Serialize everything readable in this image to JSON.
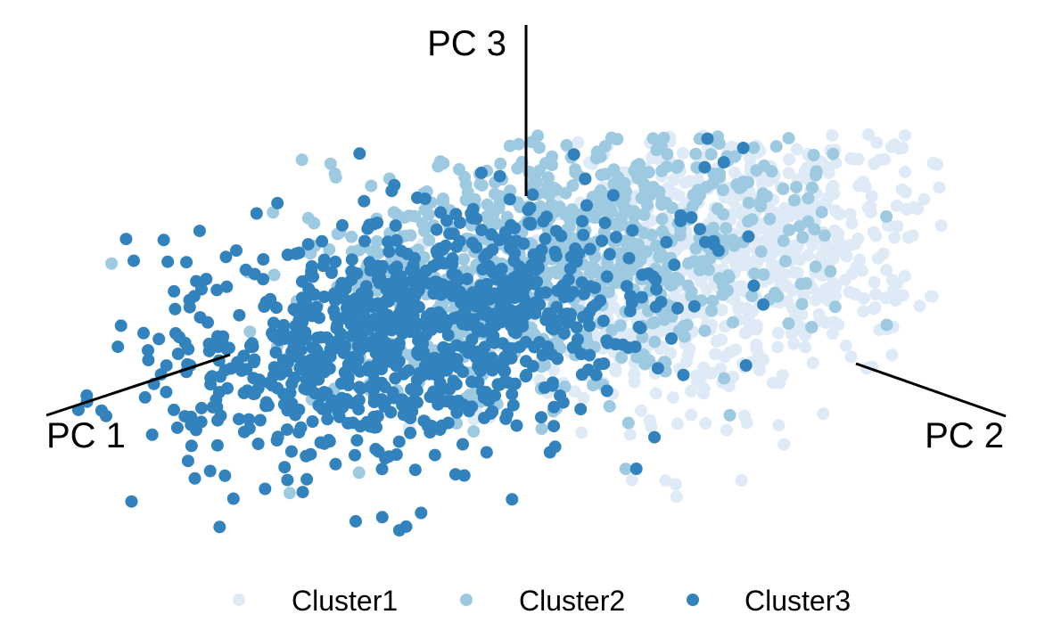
{
  "chart_data": {
    "type": "scatter",
    "projection": "3d",
    "axes": [
      {
        "id": "pc1",
        "label": "PC 1"
      },
      {
        "id": "pc2",
        "label": "PC 2"
      },
      {
        "id": "pc3",
        "label": "PC 3"
      }
    ],
    "grid": false,
    "legend_position": "bottom",
    "series": [
      {
        "name": "Cluster1",
        "color": "#deebf7",
        "center": [
          -0.2,
          1.6,
          0.9
        ],
        "spread": [
          0.9,
          0.55,
          0.6
        ],
        "n": 900
      },
      {
        "name": "Cluster2",
        "color": "#9ecae1",
        "center": [
          0.4,
          0.7,
          0.75
        ],
        "spread": [
          1.0,
          0.6,
          0.5
        ],
        "n": 900
      },
      {
        "name": "Cluster3",
        "color": "#3182bd",
        "center": [
          1.1,
          0.0,
          -0.05
        ],
        "spread": [
          1.0,
          0.55,
          0.5
        ],
        "n": 1000
      }
    ]
  }
}
